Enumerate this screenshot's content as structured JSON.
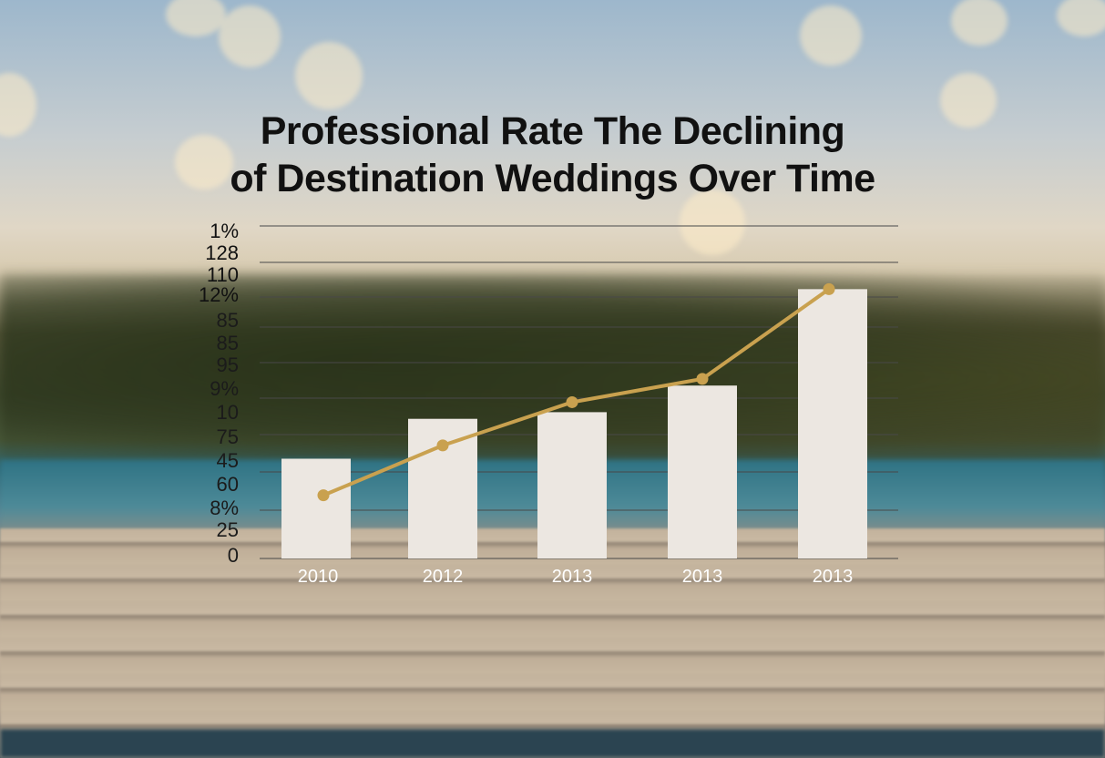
{
  "title_lines": [
    "Professional Rate The Declining",
    "of Destination Weddings Over Time"
  ],
  "chart_data": {
    "type": "bar",
    "title": "Professional Rate The Declining of Destination Weddings Over Time",
    "xlabel": "",
    "ylabel": "",
    "categories": [
      "2010",
      "2012",
      "2013",
      "2013",
      "2013"
    ],
    "y_tick_labels": [
      "1%",
      "128",
      "110",
      "12%",
      "85",
      "85",
      "95",
      "9%",
      "10",
      "75",
      "45",
      "60",
      "8%",
      "25",
      "0"
    ],
    "ylim": [
      0,
      100
    ],
    "grid": true,
    "series": [
      {
        "type": "bar",
        "values": [
          30,
          42,
          44,
          52,
          81
        ]
      },
      {
        "type": "line",
        "values": [
          19,
          34,
          47,
          54,
          81
        ]
      }
    ],
    "colors": {
      "bar": "#ece7e1",
      "line": "#c9a14f",
      "text": "#111111",
      "xtick": "#ffffff",
      "grid": "#4a4a4a"
    }
  }
}
